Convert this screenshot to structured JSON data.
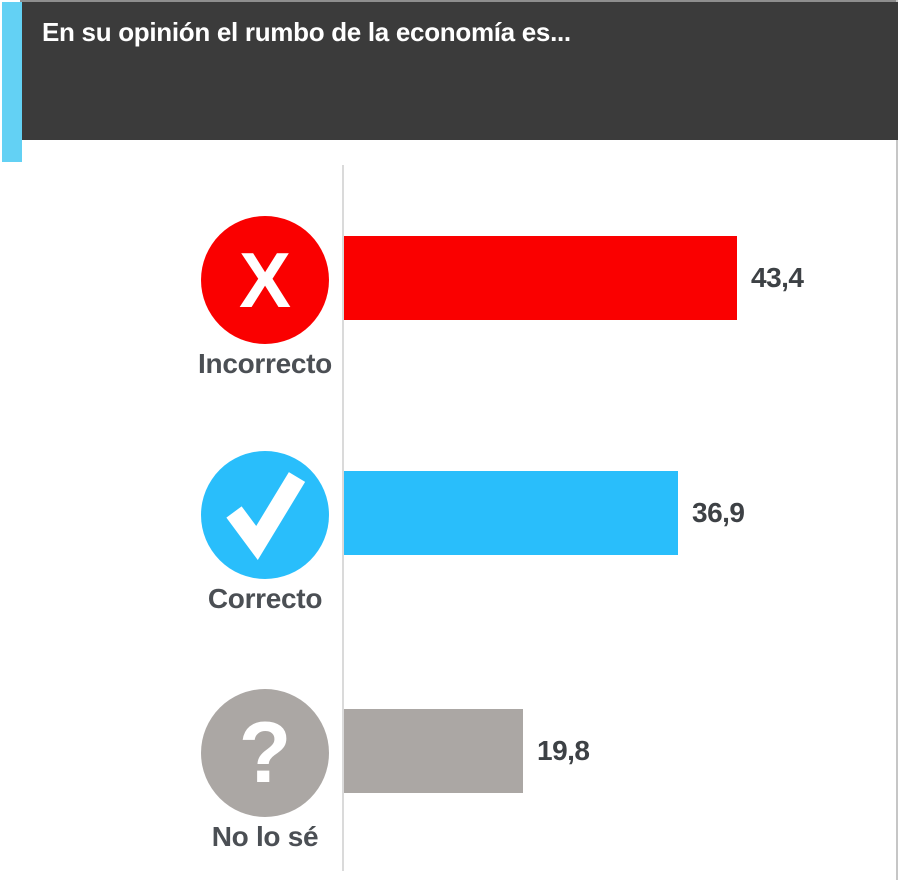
{
  "header": {
    "title": "En su opinión el rumbo de la economía es..."
  },
  "colors": {
    "header_bg": "#3B3B3B",
    "accent_stripe": "#63D1F4",
    "axis_line": "#DADADA",
    "label_text": "#4B4F54",
    "value_text": "#3D4145"
  },
  "icons": {
    "x_glyph": "X",
    "check_glyph": "✓",
    "question_glyph": "?"
  },
  "chart_data": {
    "type": "bar",
    "orientation": "horizontal",
    "title": "En su opinión el rumbo de la economía es...",
    "categories": [
      "Incorrecto",
      "Correcto",
      "No lo sé"
    ],
    "values": [
      43.4,
      36.9,
      19.8
    ],
    "value_labels": [
      "43,4",
      "36,9",
      "19,8"
    ],
    "series_colors": [
      "#FA0000",
      "#29BEFB",
      "#ABA7A4"
    ],
    "icon_names": [
      "x-icon",
      "check-icon",
      "question-icon"
    ],
    "xlim": [
      0,
      61
    ],
    "grid": false,
    "legend": false,
    "value_decimal_separator": ","
  }
}
